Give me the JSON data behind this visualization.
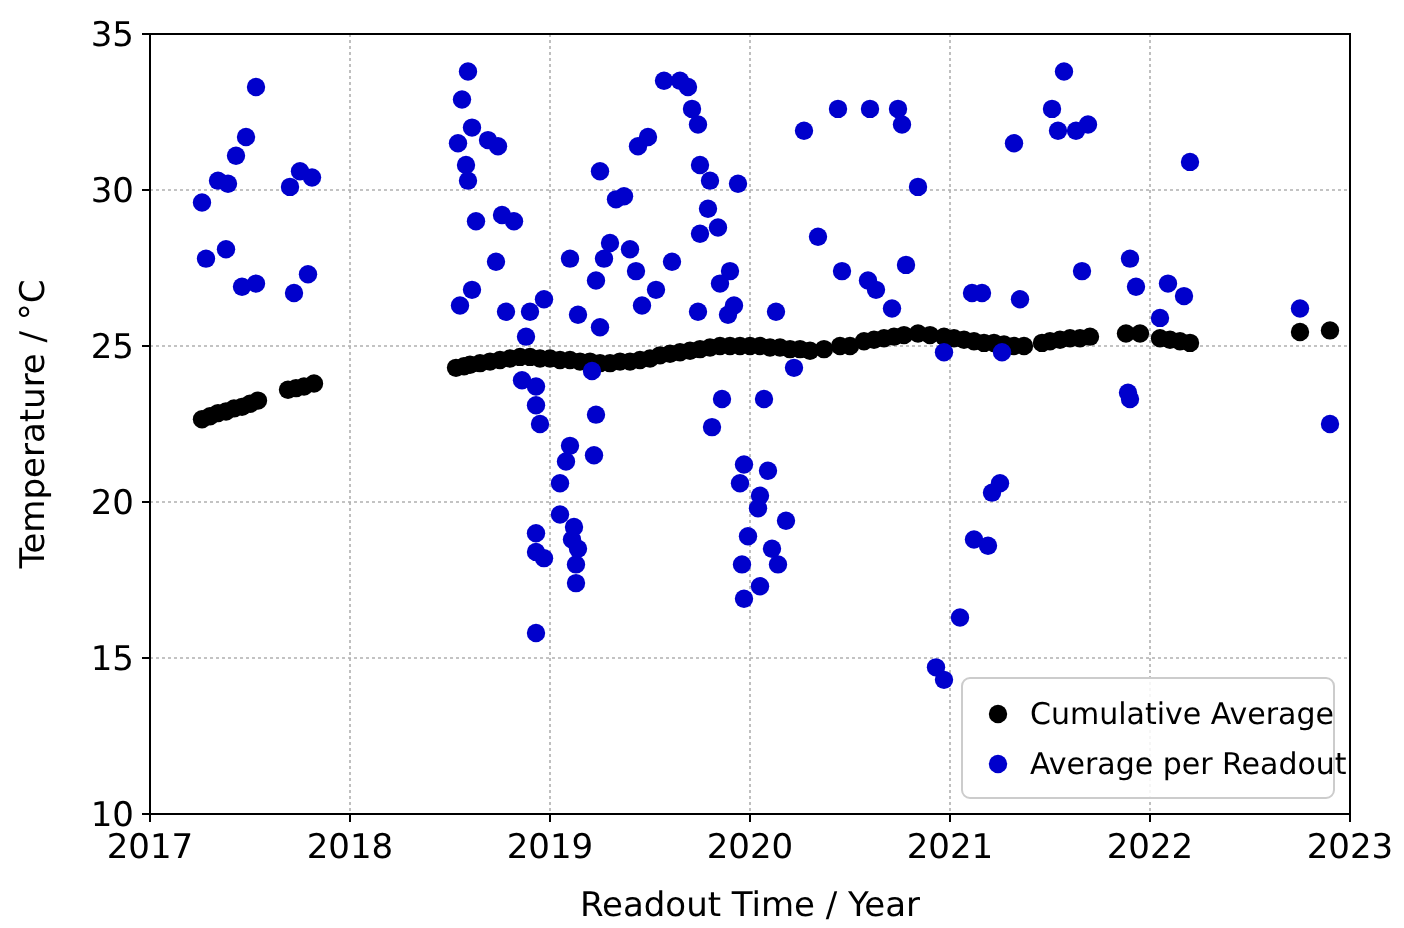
{
  "chart_data": {
    "type": "scatter",
    "xlabel": "Readout Time / Year",
    "ylabel": "Temperature / °C",
    "xlim": [
      2017,
      2023
    ],
    "xticks": [
      2017,
      2018,
      2019,
      2020,
      2021,
      2022,
      2023
    ],
    "ylim": [
      10,
      35
    ],
    "yticks": [
      10,
      15,
      20,
      25,
      30,
      35
    ],
    "grid": true,
    "legend": "bottom right",
    "marker": "circle",
    "series": [
      {
        "name": "Cumulative Average",
        "color": "#000000",
        "x": [
          2017.26,
          2017.3,
          2017.34,
          2017.38,
          2017.42,
          2017.46,
          2017.5,
          2017.54,
          2017.69,
          2017.73,
          2017.77,
          2017.82,
          2018.53,
          2018.57,
          2018.6,
          2018.65,
          2018.7,
          2018.75,
          2018.8,
          2018.85,
          2018.9,
          2018.95,
          2019.0,
          2019.05,
          2019.1,
          2019.15,
          2019.2,
          2019.25,
          2019.3,
          2019.35,
          2019.4,
          2019.45,
          2019.5,
          2019.55,
          2019.6,
          2019.65,
          2019.7,
          2019.75,
          2019.8,
          2019.85,
          2019.9,
          2019.95,
          2020.0,
          2020.05,
          2020.1,
          2020.15,
          2020.2,
          2020.25,
          2020.3,
          2020.37,
          2020.45,
          2020.5,
          2020.57,
          2020.62,
          2020.67,
          2020.72,
          2020.77,
          2020.84,
          2020.9,
          2020.97,
          2021.02,
          2021.07,
          2021.12,
          2021.17,
          2021.22,
          2021.27,
          2021.32,
          2021.37,
          2021.46,
          2021.5,
          2021.55,
          2021.6,
          2021.65,
          2021.7,
          2021.88,
          2021.95,
          2022.05,
          2022.1,
          2022.15,
          2022.2,
          2022.75,
          2022.9
        ],
        "values": [
          22.65,
          22.75,
          22.85,
          22.9,
          23.0,
          23.05,
          23.15,
          23.25,
          23.6,
          23.65,
          23.7,
          23.8,
          24.3,
          24.35,
          24.4,
          24.45,
          24.5,
          24.55,
          24.6,
          24.65,
          24.65,
          24.6,
          24.6,
          24.55,
          24.55,
          24.5,
          24.5,
          24.45,
          24.45,
          24.5,
          24.5,
          24.55,
          24.6,
          24.7,
          24.75,
          24.8,
          24.85,
          24.9,
          24.95,
          25.0,
          25.0,
          25.0,
          25.0,
          25.0,
          24.95,
          24.95,
          24.9,
          24.9,
          24.85,
          24.9,
          25.0,
          25.0,
          25.15,
          25.2,
          25.25,
          25.3,
          25.35,
          25.4,
          25.35,
          25.3,
          25.25,
          25.2,
          25.15,
          25.1,
          25.1,
          25.05,
          25.0,
          25.0,
          25.1,
          25.15,
          25.2,
          25.25,
          25.25,
          25.3,
          25.4,
          25.4,
          25.25,
          25.2,
          25.15,
          25.1,
          25.45,
          25.5
        ]
      },
      {
        "name": "Average per Readout",
        "color": "#0000cc",
        "x": [
          2017.53,
          2017.48,
          2017.43,
          2017.34,
          2017.39,
          2017.26,
          2017.28,
          2017.38,
          2017.46,
          2017.53,
          2017.72,
          2017.79,
          2017.7,
          2017.75,
          2017.81,
          2018.59,
          2018.56,
          2018.61,
          2018.54,
          2018.69,
          2018.74,
          2018.58,
          2018.59,
          2018.63,
          2018.76,
          2018.82,
          2018.73,
          2018.61,
          2018.55,
          2018.78,
          2018.9,
          2018.97,
          2018.88,
          2018.86,
          2018.93,
          2018.93,
          2018.95,
          2019.1,
          2019.08,
          2019.05,
          2019.22,
          2019.23,
          2019.21,
          2018.93,
          2018.93,
          2018.97,
          2019.05,
          2019.12,
          2019.11,
          2019.14,
          2019.13,
          2019.13,
          2018.93,
          2019.1,
          2019.14,
          2019.25,
          2019.25,
          2019.33,
          2019.37,
          2019.27,
          2019.3,
          2019.4,
          2019.43,
          2019.23,
          2019.46,
          2019.53,
          2019.61,
          2019.44,
          2019.49,
          2019.57,
          2019.65,
          2019.69,
          2019.71,
          2019.74,
          2019.75,
          2019.8,
          2019.94,
          2019.79,
          2019.84,
          2019.75,
          2019.9,
          2019.85,
          2019.74,
          2019.89,
          2019.92,
          2020.13,
          2020.22,
          2019.86,
          2019.81,
          2020.07,
          2020.27,
          2020.34,
          2019.97,
          2019.95,
          2020.09,
          2020.05,
          2020.04,
          2020.18,
          2019.99,
          2020.11,
          2019.96,
          2020.14,
          2020.05,
          2019.97,
          2020.44,
          2020.6,
          2020.74,
          2020.76,
          2020.84,
          2020.46,
          2020.59,
          2020.63,
          2020.78,
          2020.71,
          2020.97,
          2020.93,
          2020.97,
          2021.32,
          2021.11,
          2021.16,
          2021.35,
          2021.26,
          2021.25,
          2021.21,
          2021.12,
          2021.19,
          2021.05,
          2021.57,
          2021.51,
          2021.54,
          2021.63,
          2021.69,
          2021.66,
          2022.2,
          2021.9,
          2021.93,
          2021.89,
          2021.9,
          2022.09,
          2022.17,
          2022.05,
          2022.75,
          2022.9
        ],
        "values": [
          33.3,
          31.7,
          31.1,
          30.3,
          30.2,
          29.6,
          27.8,
          28.1,
          26.9,
          27.0,
          26.7,
          27.3,
          30.1,
          30.6,
          30.4,
          33.8,
          32.9,
          32.0,
          31.5,
          31.6,
          31.4,
          30.8,
          30.3,
          29.0,
          29.2,
          29.0,
          27.7,
          26.8,
          26.3,
          26.1,
          26.1,
          26.5,
          25.3,
          23.9,
          23.7,
          23.1,
          22.5,
          21.8,
          21.3,
          20.6,
          21.5,
          22.8,
          24.2,
          19.0,
          18.4,
          18.2,
          19.6,
          19.2,
          18.8,
          18.5,
          18.0,
          17.4,
          15.8,
          27.8,
          26.0,
          25.6,
          30.6,
          29.7,
          29.8,
          27.8,
          28.3,
          28.1,
          27.4,
          27.1,
          26.3,
          26.8,
          27.7,
          31.4,
          31.7,
          33.5,
          33.5,
          33.3,
          32.6,
          32.1,
          30.8,
          30.3,
          30.2,
          29.4,
          28.8,
          28.6,
          27.4,
          27.0,
          26.1,
          26.0,
          26.3,
          26.1,
          24.3,
          23.3,
          22.4,
          23.3,
          31.9,
          28.5,
          21.2,
          20.6,
          21.0,
          20.2,
          19.8,
          19.4,
          18.9,
          18.5,
          18.0,
          18.0,
          17.3,
          16.9,
          32.6,
          32.6,
          32.6,
          32.1,
          30.1,
          27.4,
          27.1,
          26.8,
          27.6,
          26.2,
          24.8,
          14.7,
          14.3,
          31.5,
          26.7,
          26.7,
          26.5,
          24.8,
          20.6,
          20.3,
          18.8,
          18.6,
          16.3,
          33.8,
          32.6,
          31.9,
          31.9,
          32.1,
          27.4,
          30.9,
          27.8,
          26.9,
          23.5,
          23.3,
          27.0,
          26.6,
          25.9,
          26.2,
          22.5
        ]
      }
    ]
  }
}
